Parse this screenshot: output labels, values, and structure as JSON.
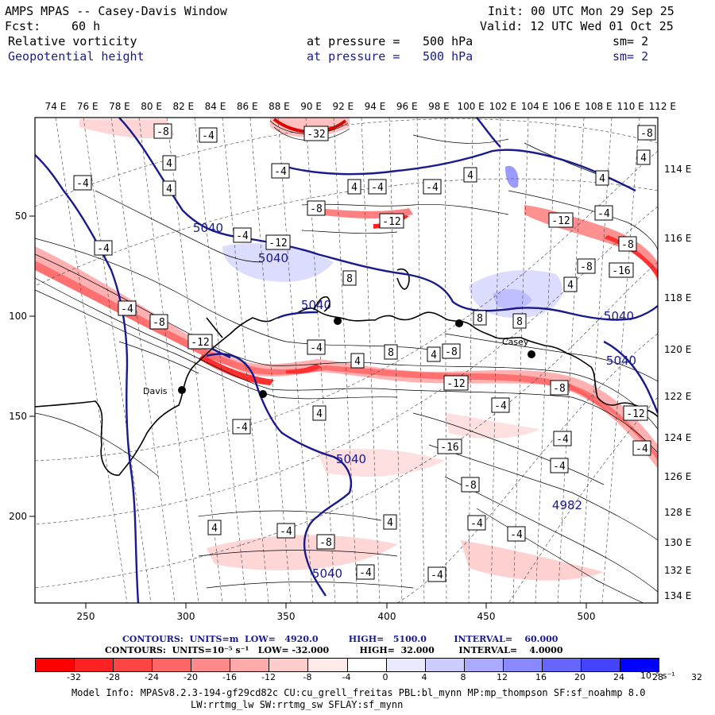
{
  "header": {
    "model_title": "AMPS MPAS -- Casey-Davis Window",
    "fcst_label": "Fcst:",
    "fcst_value": "60 h",
    "field1": "Relative vorticity",
    "field2": "Geopotential height",
    "init": "Init: 00 UTC Mon 29 Sep 25",
    "valid": "Valid: 12 UTC Wed 01 Oct 25",
    "pressure1_label": "at pressure =",
    "pressure1_value": "500 hPa",
    "pressure2_label": "at pressure =",
    "pressure2_value": "500 hPa",
    "sm1": "sm= 2",
    "sm2": "sm= 2"
  },
  "map": {
    "top_lon_labels": [
      "74 E",
      "76 E",
      "78 E",
      "80 E",
      "82 E",
      "84 E",
      "86 E",
      "88 E",
      "90 E",
      "92 E",
      "94 E",
      "96 E",
      "98 E",
      "100 E",
      "102 E",
      "104 E",
      "106 E",
      "108 E",
      "110 E",
      "112 E"
    ],
    "right_lon_labels": [
      "114 E",
      "116 E",
      "118 E",
      "120 E",
      "122 E",
      "124 E",
      "126 E",
      "128 E",
      "130 E",
      "132 E",
      "134 E"
    ],
    "x_ticks": [
      "250",
      "300",
      "350",
      "400",
      "450",
      "500"
    ],
    "y_ticks": [
      "50",
      "100",
      "150",
      "200"
    ],
    "height_labels": [
      "5040",
      "5040",
      "5040",
      "5040",
      "5040",
      "5040",
      "4982",
      "5040"
    ],
    "vort_labels": [
      "-8",
      "-32",
      "-4",
      "-4",
      "4",
      "4",
      "-4",
      "-4",
      "4",
      "-4",
      "4",
      "-8",
      "-12",
      "8",
      "-4",
      "-4",
      "-12",
      "-8",
      "-8",
      "-4",
      "-12",
      "-4",
      "4",
      "8",
      "4",
      "8",
      "-12",
      "-8",
      "8",
      "4",
      "-4",
      "-8",
      "4",
      "-12",
      "-16",
      "-8",
      "4",
      "-8",
      "-12",
      "-4",
      "-16",
      "4",
      "-4",
      "-4",
      "-4",
      "-4",
      "-8",
      "4",
      "4",
      "-4",
      "-4",
      "-4",
      "-8",
      "-4",
      "-4"
    ],
    "station_labels": [
      "Davis",
      "Casey"
    ],
    "colors": {
      "height_contour": "#1a1a8c",
      "coast": "#000000",
      "vort_neg": "#ff0000",
      "vort_pos": "#0000ff"
    }
  },
  "colorbar": {
    "title_height": "CONTOURS:  UNITS=m  LOW=   4920.0          HIGH=   5100.0         INTERVAL=    60.000",
    "title_vort": "CONTOURS:  UNITS=10⁻⁵ s⁻¹   LOW= -32.000          HIGH=  32.000        INTERVAL=    4.0000",
    "labels": [
      "-32",
      "-28",
      "-24",
      "-20",
      "-16",
      "-12",
      "-8",
      "-4",
      "0",
      "4",
      "8",
      "12",
      "16",
      "20",
      "24",
      "28",
      "32"
    ],
    "unit": "10⁻⁵ s⁻¹",
    "colors": [
      "#ff0000",
      "#ff2222",
      "#ff4444",
      "#ff6666",
      "#ff8888",
      "#ffaaaa",
      "#ffcccc",
      "#ffeaea",
      "#ffffff",
      "#ffffff",
      "#eaeaff",
      "#ccccff",
      "#aaaaff",
      "#8888ff",
      "#6666ff",
      "#4444ff",
      "#0000ff"
    ]
  },
  "footer": {
    "line1": "Model Info: MPASv8.2.3-194-gf29cd82c CU:cu_grell_freitas PBL:bl_mynn MP:mp_thompson SF:sf_noahmp 8.0",
    "line2": "LW:rrtmg_lw SW:rrtmg_sw SFLAY:sf_mynn"
  }
}
